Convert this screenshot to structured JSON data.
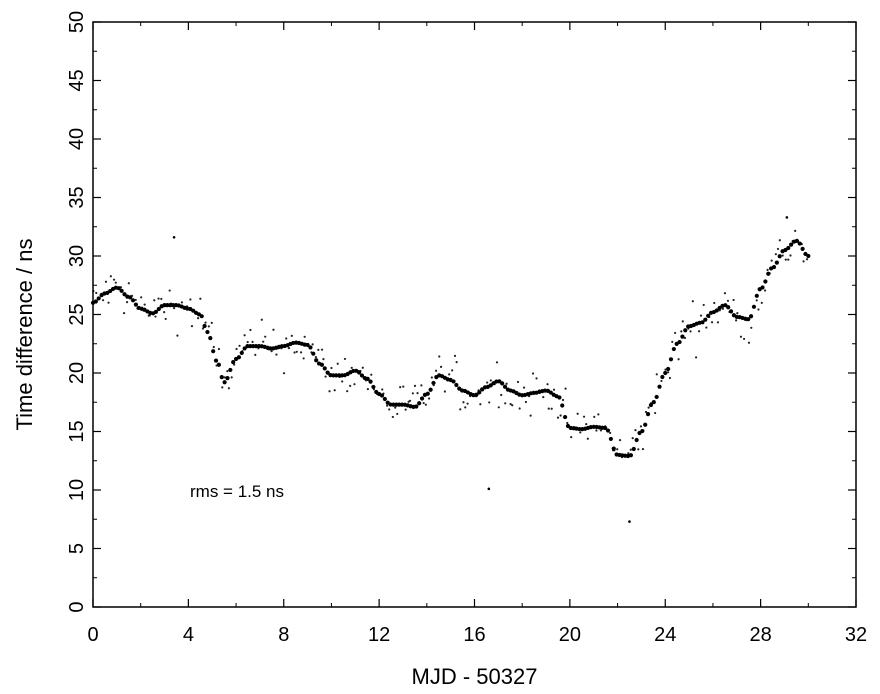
{
  "chart_data": {
    "type": "scatter",
    "xlabel": "MJD - 50327",
    "ylabel": "Time difference / ns",
    "xlim": [
      0,
      32
    ],
    "ylim": [
      0,
      50
    ],
    "x_ticks": [
      "0",
      "4",
      "8",
      "12",
      "16",
      "20",
      "24",
      "28",
      "32"
    ],
    "y_ticks": [
      "0",
      "5",
      "10",
      "15",
      "20",
      "25",
      "30",
      "35",
      "40",
      "45",
      "50"
    ],
    "annotation": "rms = 1.5 ns",
    "grid": false,
    "legend": "none",
    "series": [
      {
        "style": "smoothed-curve",
        "x": [
          0,
          0.5,
          1,
          1.5,
          2,
          2.5,
          3,
          3.5,
          4,
          4.5,
          4.8,
          5.2,
          5.5,
          6,
          6.5,
          7,
          7.5,
          8,
          8.5,
          9,
          9.5,
          10,
          10.5,
          11,
          11.5,
          12,
          12.5,
          13,
          13.5,
          14,
          14.5,
          15,
          15.5,
          16,
          16.5,
          17,
          17.5,
          18,
          18.5,
          19,
          19.5,
          20,
          20.5,
          21,
          21.5,
          22,
          22.5,
          23,
          23.5,
          24,
          24.5,
          25,
          25.5,
          26,
          26.5,
          27,
          27.5,
          28,
          28.5,
          29,
          29.5,
          30
        ],
        "y": [
          26,
          26.8,
          27.3,
          26.5,
          25.5,
          25.1,
          25.8,
          25.8,
          25.5,
          25,
          23.5,
          21,
          19.2,
          21.2,
          22.3,
          22.3,
          22.1,
          22.3,
          22.6,
          22.4,
          20.8,
          19.8,
          19.8,
          20.2,
          19.5,
          18.2,
          17.3,
          17.3,
          17.1,
          18.2,
          19.8,
          19.4,
          18.5,
          18.1,
          18.8,
          19.3,
          18.5,
          18.1,
          18.3,
          18.5,
          18,
          15.3,
          15.2,
          15.4,
          15.3,
          13,
          12.9,
          15,
          17.5,
          20,
          22.5,
          24,
          24.3,
          25.2,
          25.8,
          24.8,
          24.6,
          27.2,
          29,
          30.5,
          31.3,
          30
        ]
      }
    ]
  }
}
